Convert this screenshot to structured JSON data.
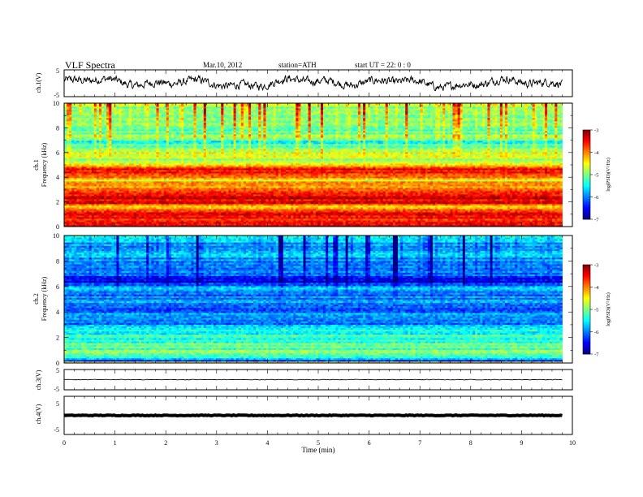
{
  "header": {
    "title": "VLF  Spectra",
    "date": "Mar.10, 2012",
    "station": "station=ATH",
    "start": "start  UT  =   22: 0  : 0"
  },
  "chart_data": [
    {
      "type": "line",
      "panel": "ch1-waveform",
      "ylabel": "ch.1(V)",
      "ylim": [
        -5,
        5
      ],
      "yticks": [
        "5",
        "-5"
      ],
      "xlim": [
        0,
        10
      ],
      "data_end_min": 9.8,
      "level_range_V": [
        -2.8,
        3.2
      ],
      "color": "#000000"
    },
    {
      "type": "heatmap",
      "panel": "ch1-spectrogram",
      "ylabel": "ch.1\nFrequency  (kHz)",
      "ylim": [
        0,
        10
      ],
      "yticks": [
        "0",
        "2",
        "4",
        "6",
        "8",
        "10"
      ],
      "xlim": [
        0,
        10
      ],
      "data_end_min": 9.8,
      "colorbar_label": "log(PSD)(V²/Hz)",
      "colorbar_range": [
        -7,
        -3
      ],
      "colorbar_ticks": [
        "-3",
        "-4",
        "-5",
        "-6",
        "-7"
      ],
      "band_profile_logPSD": [
        {
          "f": 0.0,
          "v": -3.1
        },
        {
          "f": 0.4,
          "v": -3.5
        },
        {
          "f": 0.8,
          "v": -3.7
        },
        {
          "f": 1.2,
          "v": -3.4
        },
        {
          "f": 1.6,
          "v": -4.2
        },
        {
          "f": 2.0,
          "v": -3.4
        },
        {
          "f": 2.5,
          "v": -3.5
        },
        {
          "f": 3.0,
          "v": -4.1
        },
        {
          "f": 3.4,
          "v": -3.9
        },
        {
          "f": 3.8,
          "v": -4.6
        },
        {
          "f": 4.3,
          "v": -3.5
        },
        {
          "f": 4.8,
          "v": -3.7
        },
        {
          "f": 5.1,
          "v": -4.6
        },
        {
          "f": 5.5,
          "v": -4.9
        },
        {
          "f": 5.9,
          "v": -4.5
        },
        {
          "f": 6.3,
          "v": -4.9
        },
        {
          "f": 6.8,
          "v": -5.4
        },
        {
          "f": 7.3,
          "v": -5.0
        },
        {
          "f": 8.0,
          "v": -5.1
        },
        {
          "f": 9.0,
          "v": -5.0
        },
        {
          "f": 10.0,
          "v": -4.8
        }
      ]
    },
    {
      "type": "heatmap",
      "panel": "ch2-spectrogram",
      "ylabel": "ch.2\nFrequency  (kHz)",
      "ylim": [
        0,
        10
      ],
      "yticks": [
        "0",
        "2",
        "4",
        "6",
        "8",
        "10"
      ],
      "xlim": [
        0,
        10
      ],
      "data_end_min": 9.8,
      "colorbar_label": "log(PSD)(V²/Hz)",
      "colorbar_range": [
        -7,
        -3
      ],
      "colorbar_ticks": [
        "-3",
        "-4",
        "-5",
        "-6",
        "-7"
      ],
      "band_profile_logPSD": [
        {
          "f": 0.0,
          "v": -3.6
        },
        {
          "f": 0.2,
          "v": -6.3
        },
        {
          "f": 0.6,
          "v": -5.0
        },
        {
          "f": 1.0,
          "v": -5.1
        },
        {
          "f": 1.6,
          "v": -5.2
        },
        {
          "f": 2.2,
          "v": -5.3
        },
        {
          "f": 2.8,
          "v": -5.5
        },
        {
          "f": 3.3,
          "v": -6.2
        },
        {
          "f": 3.8,
          "v": -5.6
        },
        {
          "f": 4.3,
          "v": -6.4
        },
        {
          "f": 4.8,
          "v": -5.7
        },
        {
          "f": 5.4,
          "v": -6.2
        },
        {
          "f": 5.9,
          "v": -5.6
        },
        {
          "f": 6.4,
          "v": -6.6
        },
        {
          "f": 7.0,
          "v": -5.9
        },
        {
          "f": 7.8,
          "v": -6.2
        },
        {
          "f": 8.5,
          "v": -5.6
        },
        {
          "f": 9.2,
          "v": -5.9
        },
        {
          "f": 10.0,
          "v": -5.5
        }
      ]
    },
    {
      "type": "line",
      "panel": "ch3-waveform",
      "ylabel": "ch.3(V)",
      "ylim": [
        -5,
        5
      ],
      "yticks": [
        "5",
        "-5"
      ],
      "xlim": [
        0,
        10
      ],
      "data_end_min": 9.8,
      "level_V": 0,
      "color": "#000000"
    },
    {
      "type": "line",
      "panel": "ch4-waveform",
      "ylabel": "ch.4(V)",
      "ylim": [
        -5,
        5
      ],
      "yticks": [
        "5",
        "-5"
      ],
      "xlim": [
        0,
        10
      ],
      "xticks": [
        "0",
        "1",
        "2",
        "3",
        "4",
        "5",
        "6",
        "7",
        "8",
        "9",
        "10"
      ],
      "xlabel": "Time  (min)",
      "data_end_min": 9.8,
      "level_V": 0,
      "color": "#000000"
    }
  ]
}
